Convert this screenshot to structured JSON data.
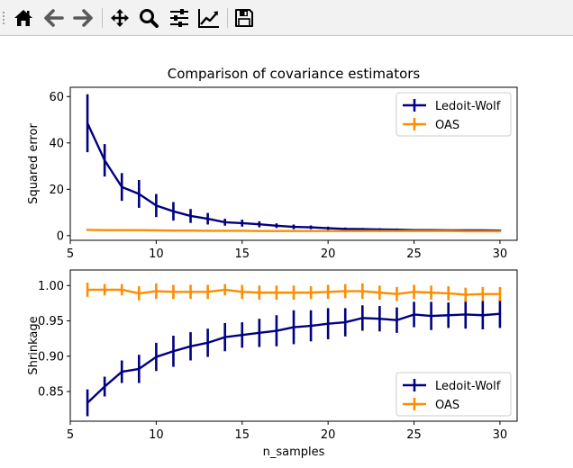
{
  "toolbar": {
    "buttons": [
      {
        "name": "home-button",
        "icon": "home-icon"
      },
      {
        "name": "back-button",
        "icon": "arrow-left-icon"
      },
      {
        "name": "forward-button",
        "icon": "arrow-right-icon"
      },
      {
        "name": "pan-button",
        "icon": "move-icon"
      },
      {
        "name": "zoom-button",
        "icon": "magnifier-icon"
      },
      {
        "name": "configure-subplots-button",
        "icon": "sliders-icon"
      },
      {
        "name": "edit-axes-button",
        "icon": "line-chart-icon"
      },
      {
        "name": "save-button",
        "icon": "floppy-disk-icon"
      }
    ]
  },
  "chart_data": [
    {
      "type": "line",
      "title": "Comparison of covariance estimators",
      "xlabel": "",
      "ylabel": "Squared error",
      "xlim": [
        5,
        31
      ],
      "ylim": [
        -2,
        64
      ],
      "xticks": [
        5,
        10,
        15,
        20,
        25,
        30
      ],
      "yticks": [
        0,
        20,
        40,
        60
      ],
      "legend": "top-right",
      "x": [
        6,
        7,
        8,
        9,
        10,
        11,
        12,
        13,
        14,
        15,
        16,
        17,
        18,
        19,
        20,
        21,
        22,
        23,
        24,
        25,
        26,
        27,
        28,
        29,
        30
      ],
      "series": [
        {
          "name": "Ledoit-Wolf",
          "color": "#000080",
          "values": [
            48.5,
            32.5,
            21,
            18,
            13,
            10.5,
            8.5,
            7.3,
            5.8,
            5.4,
            4.9,
            4.3,
            3.8,
            3.6,
            3.2,
            2.9,
            2.8,
            2.7,
            2.6,
            2.4,
            2.4,
            2.3,
            2.3,
            2.3,
            2.2
          ],
          "errors": [
            12.5,
            7,
            6,
            6,
            5,
            4,
            3,
            2.5,
            1.5,
            1.5,
            1.3,
            1,
            1,
            0.8,
            0.7,
            0.6,
            0.5,
            0.5,
            0.5,
            0.4,
            0.4,
            0.3,
            0.3,
            0.3,
            0.3
          ]
        },
        {
          "name": "OAS",
          "color": "#ff8c00",
          "values": [
            2.5,
            2.4,
            2.4,
            2.4,
            2.3,
            2.2,
            2.2,
            2.1,
            2.1,
            2.1,
            2.0,
            2.0,
            2.0,
            2.0,
            2.0,
            2.0,
            2.0,
            2.0,
            2.0,
            2.0,
            2.0,
            2.0,
            1.9,
            1.9,
            1.9
          ],
          "errors": [
            0.4,
            0.3,
            0.3,
            0.3,
            0.3,
            0.3,
            0.3,
            0.2,
            0.2,
            0.2,
            0.2,
            0.2,
            0.2,
            0.2,
            0.2,
            0.2,
            0.2,
            0.2,
            0.2,
            0.2,
            0.2,
            0.2,
            0.2,
            0.2,
            0.2
          ]
        }
      ]
    },
    {
      "type": "line",
      "title": "",
      "xlabel": "n_samples",
      "ylabel": "Shrinkage",
      "xlim": [
        5,
        31
      ],
      "ylim": [
        0.808,
        1.022
      ],
      "xticks": [
        5,
        10,
        15,
        20,
        25,
        30
      ],
      "yticks": [
        0.85,
        0.9,
        0.95,
        1.0
      ],
      "ytick_labels": [
        "0.85",
        "0.90",
        "0.95",
        "1.00"
      ],
      "legend": "bottom-right",
      "x": [
        6,
        7,
        8,
        9,
        10,
        11,
        12,
        13,
        14,
        15,
        16,
        17,
        18,
        19,
        20,
        21,
        22,
        23,
        24,
        25,
        26,
        27,
        28,
        29,
        30
      ],
      "series": [
        {
          "name": "Ledoit-Wolf",
          "color": "#000080",
          "values": [
            0.834,
            0.857,
            0.878,
            0.882,
            0.899,
            0.907,
            0.914,
            0.919,
            0.927,
            0.93,
            0.933,
            0.936,
            0.941,
            0.943,
            0.946,
            0.948,
            0.954,
            0.953,
            0.951,
            0.959,
            0.957,
            0.958,
            0.959,
            0.958,
            0.96
          ],
          "errors": [
            0.019,
            0.014,
            0.016,
            0.02,
            0.02,
            0.022,
            0.02,
            0.02,
            0.02,
            0.018,
            0.02,
            0.022,
            0.024,
            0.022,
            0.022,
            0.02,
            0.018,
            0.018,
            0.018,
            0.018,
            0.02,
            0.018,
            0.02,
            0.02,
            0.02
          ]
        },
        {
          "name": "OAS",
          "color": "#ff8c00",
          "values": [
            0.994,
            0.994,
            0.994,
            0.989,
            0.992,
            0.991,
            0.991,
            0.991,
            0.994,
            0.991,
            0.99,
            0.99,
            0.99,
            0.99,
            0.991,
            0.992,
            0.992,
            0.99,
            0.988,
            0.991,
            0.99,
            0.989,
            0.987,
            0.988,
            0.988
          ],
          "errors": [
            0.01,
            0.008,
            0.008,
            0.01,
            0.011,
            0.01,
            0.01,
            0.01,
            0.008,
            0.01,
            0.01,
            0.01,
            0.01,
            0.009,
            0.01,
            0.01,
            0.011,
            0.01,
            0.01,
            0.01,
            0.01,
            0.01,
            0.01,
            0.01,
            0.01
          ]
        }
      ]
    }
  ]
}
